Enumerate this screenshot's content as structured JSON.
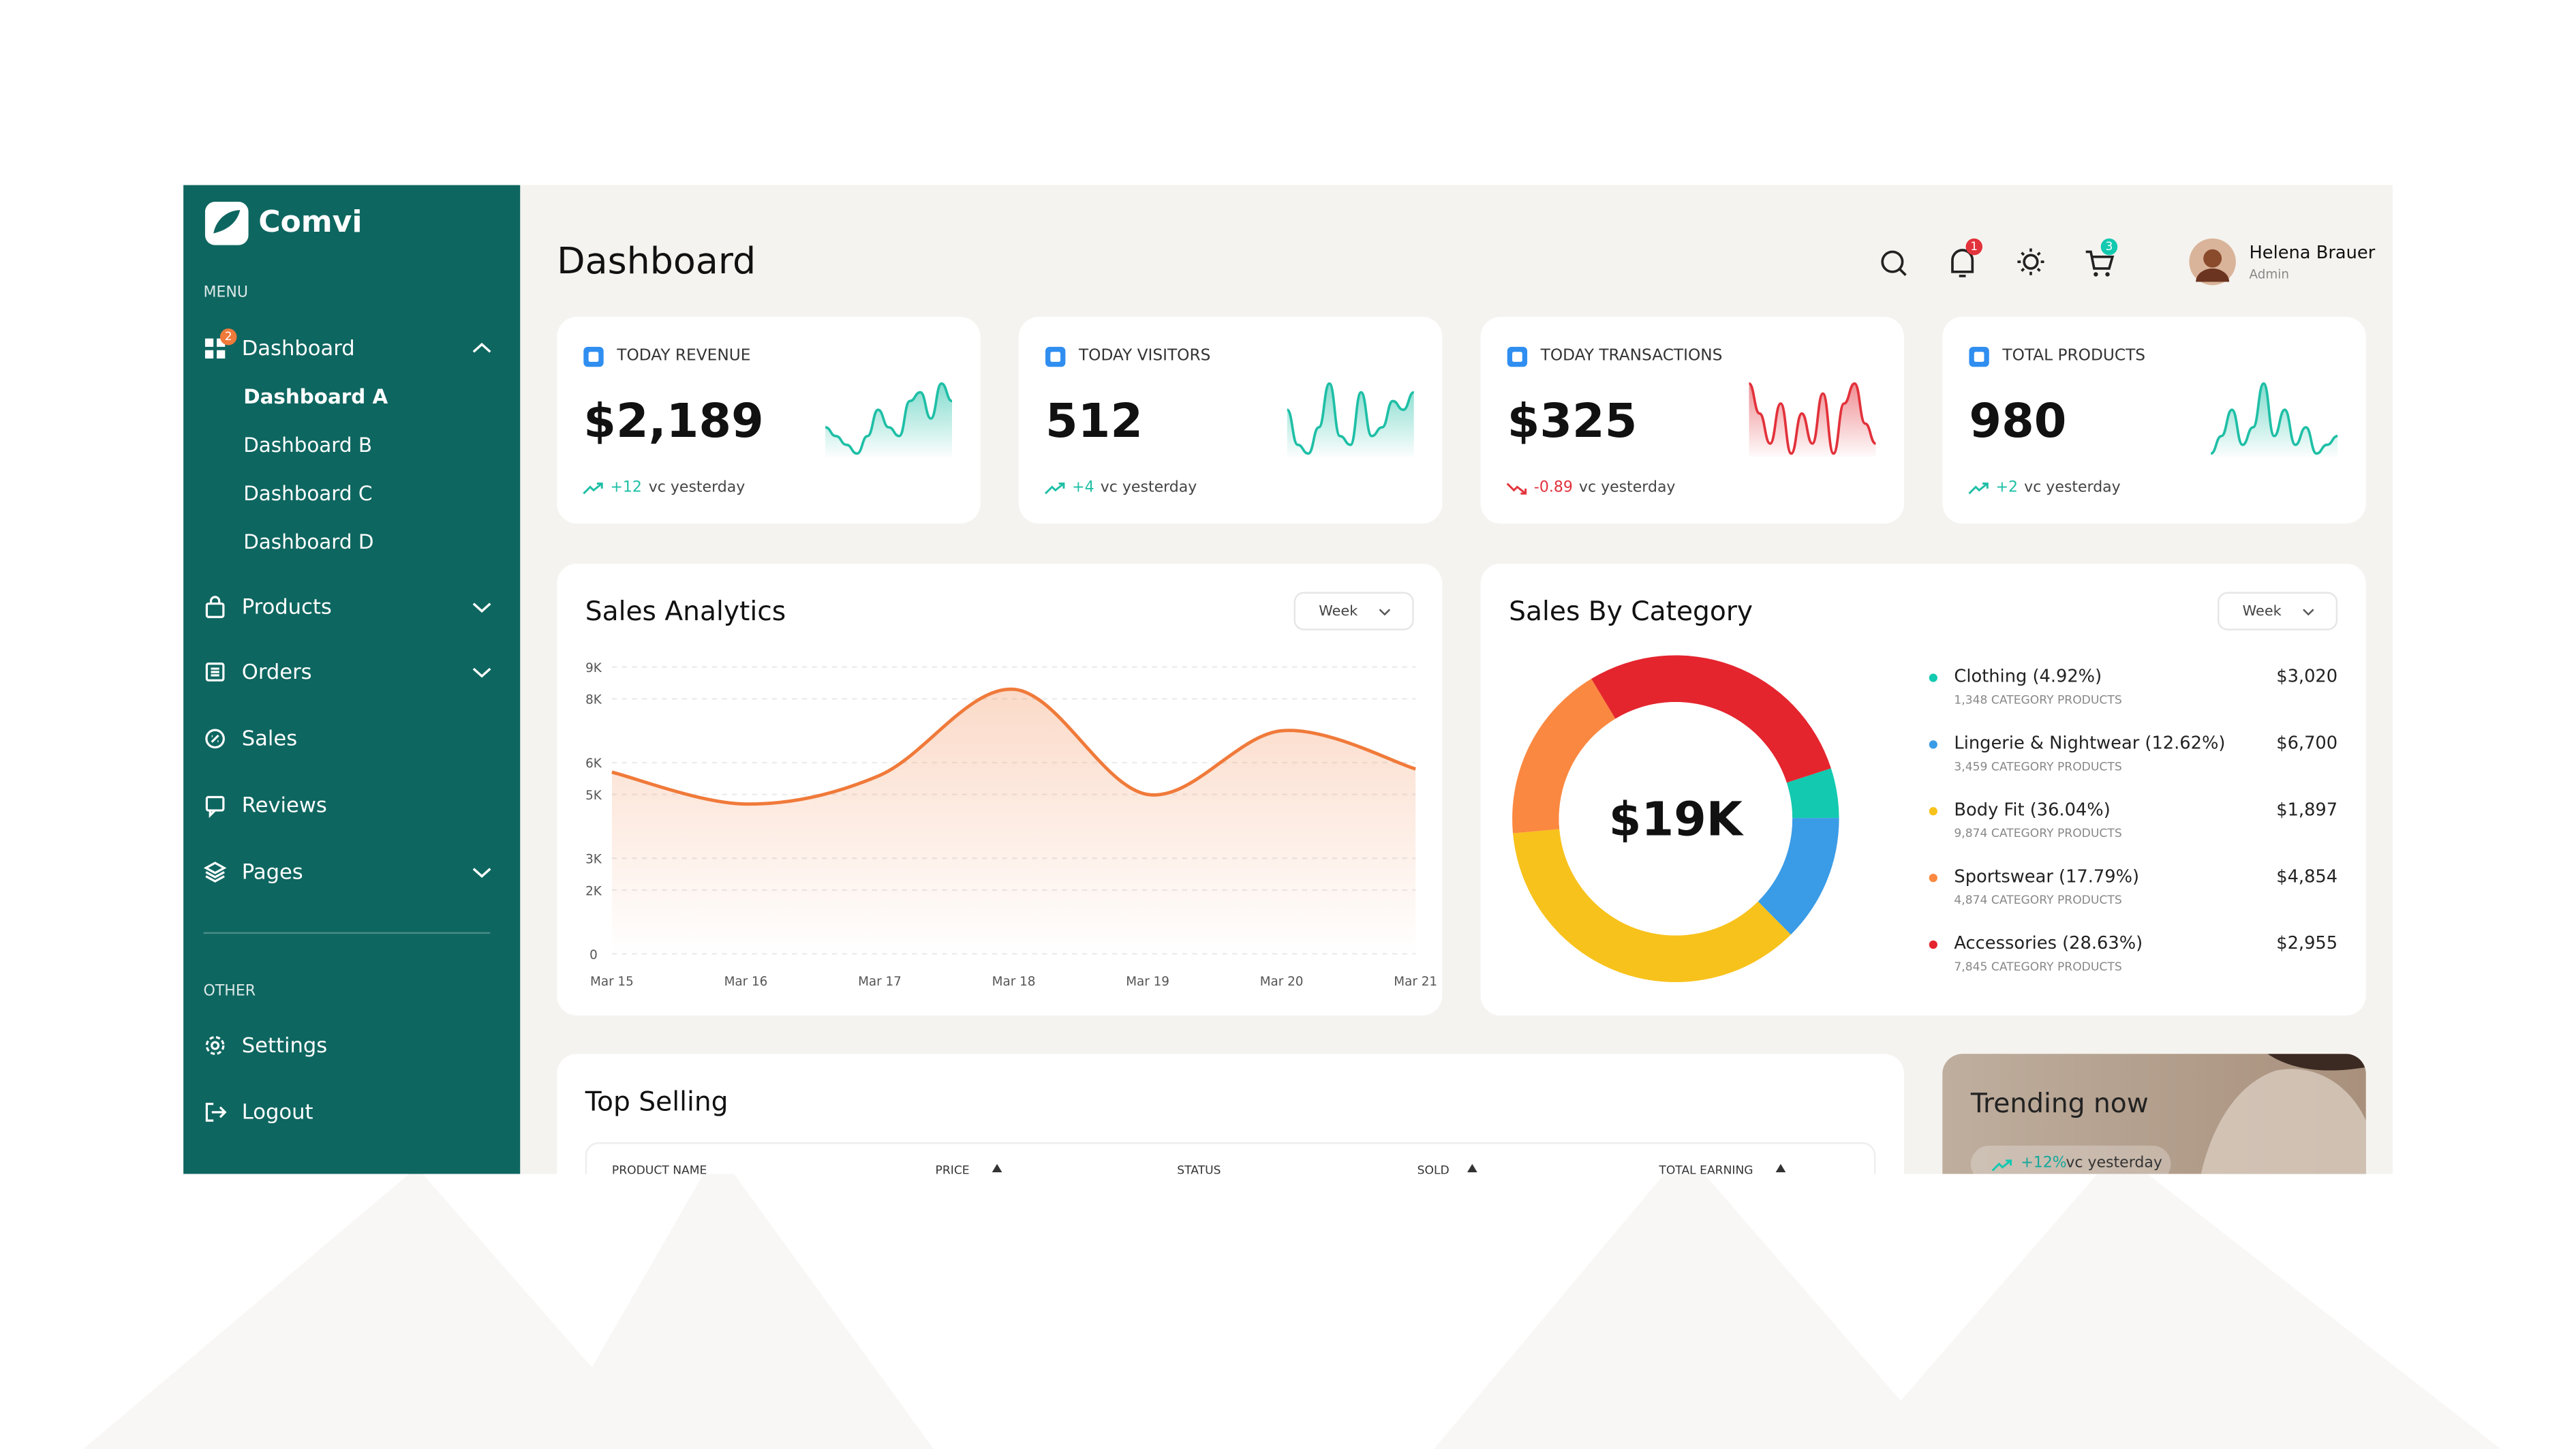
{
  "brand": "Comvi",
  "sidebar": {
    "menu_heading": "MENU",
    "items": [
      {
        "label": "Dashboard",
        "badge": "2",
        "chevron": "up",
        "children": [
          "Dashboard A",
          "Dashboard B",
          "Dashboard C",
          "Dashboard D"
        ]
      },
      {
        "label": "Products",
        "chevron": "down"
      },
      {
        "label": "Orders",
        "chevron": "down"
      },
      {
        "label": "Sales"
      },
      {
        "label": "Reviews"
      },
      {
        "label": "Pages",
        "chevron": "down"
      }
    ],
    "other_heading": "OTHER",
    "other_items": [
      {
        "label": "Settings"
      },
      {
        "label": "Logout"
      }
    ]
  },
  "header": {
    "title": "Dashboard",
    "notification_badge": "1",
    "cart_badge": "3",
    "user_name": "Helena Brauer",
    "user_role": "Admin"
  },
  "stats": [
    {
      "label": "TODAY REVENUE",
      "value": "$2,189",
      "change": "+12",
      "change_text": "vc yesterday",
      "trend": "up",
      "color": "#1fbfa6",
      "sparkline": [
        4,
        3,
        2,
        1,
        3,
        6,
        4,
        3,
        7,
        8,
        5,
        9,
        7
      ]
    },
    {
      "label": "TODAY VISITORS",
      "value": "512",
      "change": "+4",
      "change_text": "vc yesterday",
      "trend": "up",
      "color": "#1fbfa6",
      "sparkline": [
        6,
        2,
        1,
        4,
        9,
        3,
        2,
        8,
        3,
        4,
        7,
        6,
        8
      ]
    },
    {
      "label": "TODAY TRANSACTIONS",
      "value": "$325",
      "change": "-0.89",
      "change_text": "vc yesterday",
      "trend": "down",
      "color": "#e2323b",
      "sparkline": [
        9,
        6,
        3,
        7,
        2,
        6,
        3,
        8,
        2,
        7,
        9,
        5,
        3
      ]
    },
    {
      "label": "TOTAL PRODUCTS",
      "value": "980",
      "change": "+2",
      "change_text": "vc yesterday",
      "trend": "up",
      "color": "#1fbfa6",
      "sparkline": [
        1,
        3,
        6,
        2,
        4,
        9,
        3,
        6,
        2,
        4,
        1,
        2,
        3
      ]
    }
  ],
  "sales_analytics": {
    "title": "Sales Analytics",
    "period": "Week",
    "categories": [
      "Mar 15",
      "Mar 16",
      "Mar 17",
      "Mar 18",
      "Mar 19",
      "Mar 20",
      "Mar 21"
    ],
    "values": [
      5700,
      4700,
      5600,
      8300,
      5000,
      7000,
      5800
    ],
    "ylim": [
      0,
      9000
    ],
    "yticks": [
      {
        "value": 0,
        "label": "0"
      },
      {
        "value": 2000,
        "label": "2K"
      },
      {
        "value": 3000,
        "label": "3K"
      },
      {
        "value": 5000,
        "label": "5K"
      },
      {
        "value": 6000,
        "label": "6K"
      },
      {
        "value": 8000,
        "label": "8K"
      },
      {
        "value": 9000,
        "label": "9K"
      }
    ],
    "color": "#f07a3a"
  },
  "sales_by_category": {
    "title": "Sales By Category",
    "period": "Week",
    "total": "$19K",
    "items": [
      {
        "label": "Clothing (4.92%)",
        "share": 4.92,
        "products": "1,348 CATEGORY PRODUCTS",
        "amount": "$3,020",
        "color": "#13c9b0"
      },
      {
        "label": "Lingerie & Nightwear (12.62%)",
        "share": 12.62,
        "products": "3,459 CATEGORY PRODUCTS",
        "amount": "$6,700",
        "color": "#3a9be6"
      },
      {
        "label": "Body Fit (36.04%)",
        "share": 36.04,
        "products": "9,874 CATEGORY PRODUCTS",
        "amount": "$1,897",
        "color": "#f8c21c"
      },
      {
        "label": "Sportswear (17.79%)",
        "share": 17.79,
        "products": "4,874 CATEGORY PRODUCTS",
        "amount": "$4,854",
        "color": "#fb8840"
      },
      {
        "label": "Accessories (28.63%)",
        "share": 28.63,
        "products": "7,845 CATEGORY PRODUCTS",
        "amount": "$2,955",
        "color": "#e4252e"
      }
    ]
  },
  "top_selling": {
    "title": "Top Selling",
    "columns": [
      "PRODUCT NAME",
      "PRICE",
      "STATUS",
      "SOLD",
      "TOTAL EARNING"
    ]
  },
  "trending": {
    "title": "Trending now",
    "change": "+12%",
    "change_text": "vc yesterday"
  }
}
